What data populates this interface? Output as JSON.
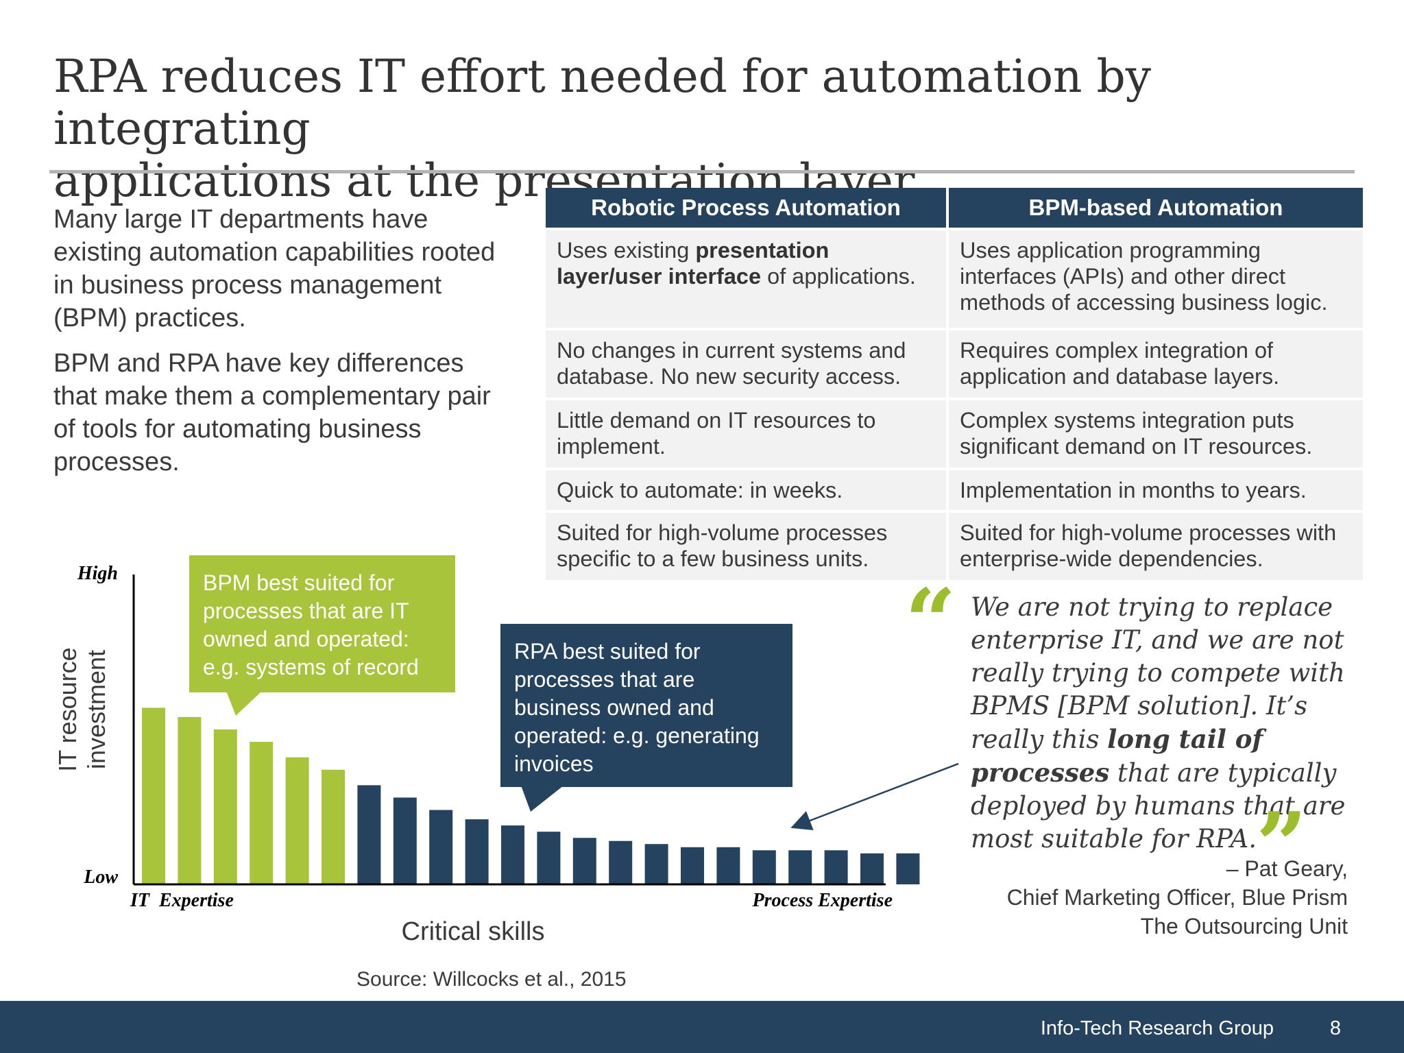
{
  "title": {
    "line1": "RPA reduces IT effort needed for automation by integrating",
    "line2": "applications at the presentation layer"
  },
  "intro": {
    "p1": "Many large IT departments have existing automation capabilities rooted in business process management (BPM) practices.",
    "p2": "BPM and RPA have key differences that make them a complementary pair of tools for automating business processes."
  },
  "table": {
    "headers": [
      "Robotic Process Automation",
      "BPM-based Automation"
    ],
    "rows": [
      {
        "rpa": {
          "pre": "Uses existing ",
          "bold": "presentation layer/user interface",
          "post": " of applications."
        },
        "bpm": "Uses application programming interfaces (APIs) and other direct methods of accessing business logic."
      },
      {
        "rpa": {
          "pre": "No changes in current systems and database. No new security access.",
          "bold": "",
          "post": ""
        },
        "bpm": "Requires complex integration of application and database layers."
      },
      {
        "rpa": {
          "pre": "Little demand on IT resources to implement.",
          "bold": "",
          "post": ""
        },
        "bpm": "Complex systems integration puts significant demand on IT resources."
      },
      {
        "rpa": {
          "pre": "Quick to automate: in weeks.",
          "bold": "",
          "post": ""
        },
        "bpm": "Implementation in months to years."
      },
      {
        "rpa": {
          "pre": "Suited for high-volume processes specific to a few business units.",
          "bold": "",
          "post": ""
        },
        "bpm": "Suited for high-volume processes with enterprise-wide dependencies."
      }
    ]
  },
  "quote": {
    "open_mark": "“",
    "close_mark": "”",
    "pre": "We are not trying to replace enterprise IT, and we are not really trying to compete with BPMS [BPM solution]. It’s really this ",
    "bold": "long tail of processes",
    "post": " that are typically deployed by humans that are most suitable for RPA.",
    "attribution": {
      "name": "– Pat Geary,",
      "role": "Chief Marketing Officer, Blue Prism",
      "source": "The Outsourcing Unit"
    }
  },
  "chart_data": {
    "type": "bar",
    "title": "",
    "ylabel": "IT resource investment",
    "xlabel": "Critical skills",
    "y_tick_labels": [
      "Low",
      "High"
    ],
    "x_end_labels": [
      "IT  Expertise",
      "Process Expertise"
    ],
    "ylim": [
      0,
      100
    ],
    "series": [
      {
        "name": "BPM",
        "color": "#a8c43a",
        "values": [
          57,
          54,
          50,
          46,
          41,
          37
        ]
      },
      {
        "name": "RPA",
        "color": "#25435e",
        "values": [
          32,
          28,
          24,
          21,
          19,
          17,
          15,
          14,
          13,
          12,
          12,
          11,
          11,
          11,
          10,
          10
        ]
      }
    ],
    "callouts": [
      "BPM best suited for processes that are IT owned and operated: e.g. systems of record",
      "RPA best suited for processes that are business owned and operated: e.g. generating invoices"
    ],
    "source": "Source: Willcocks et al., 2015"
  },
  "footer": {
    "org": "Info-Tech Research Group",
    "page": "8"
  }
}
